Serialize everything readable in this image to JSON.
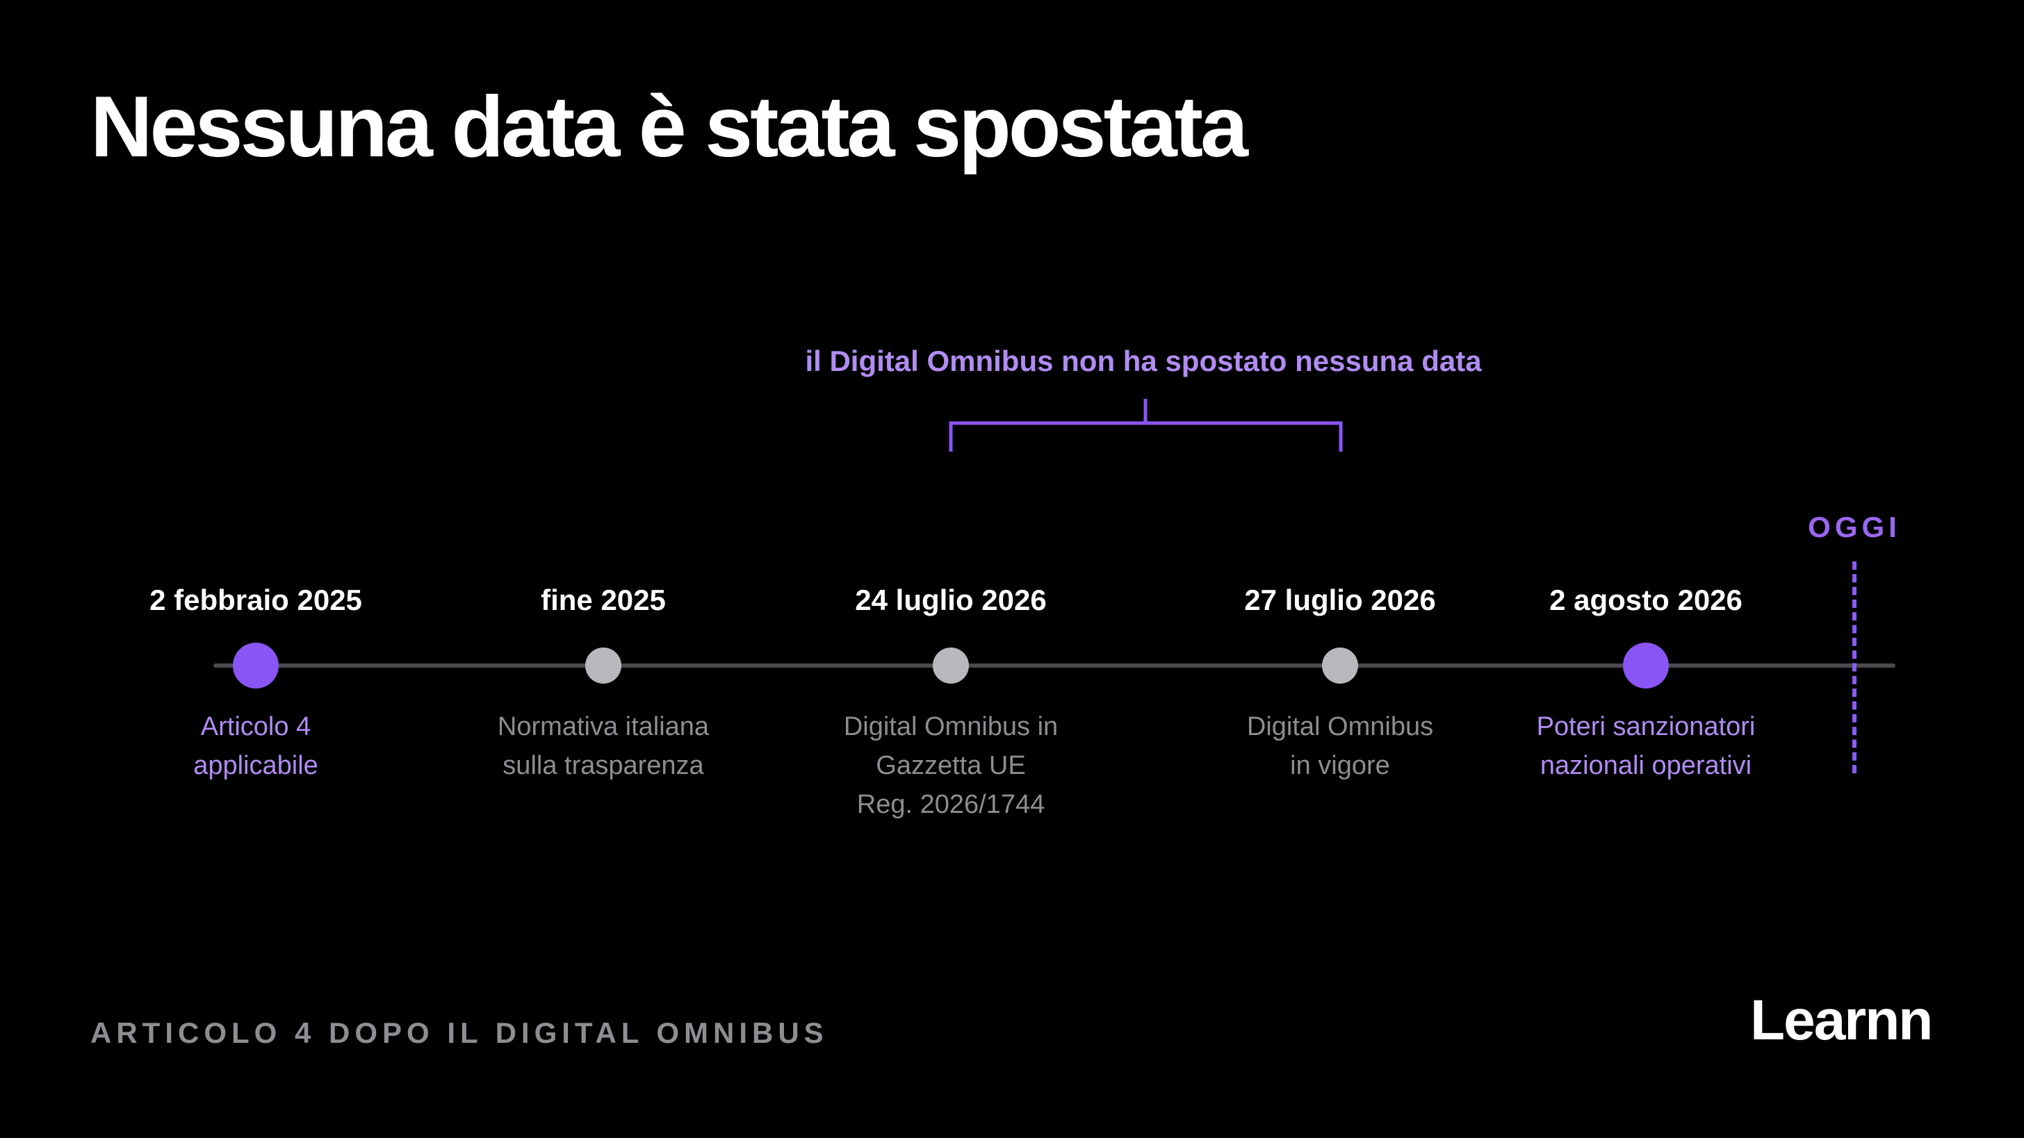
{
  "title": "Nessuna data è stata spostata",
  "bracket_label": "il Digital Omnibus non ha spostato nessuna data",
  "today_label": "OGGI",
  "milestones": [
    {
      "date": "2 febbraio 2025",
      "desc": [
        "Articolo 4",
        "applicabile"
      ],
      "style": "major"
    },
    {
      "date": "fine 2025",
      "desc": [
        "Normativa italiana",
        "sulla trasparenza"
      ],
      "style": "minor"
    },
    {
      "date": "24 luglio 2026",
      "desc": [
        "Digital Omnibus in",
        "Gazzetta UE",
        "Reg. 2026/1744"
      ],
      "style": "minor"
    },
    {
      "date": "27 luglio 2026",
      "desc": [
        "Digital Omnibus",
        "in vigore"
      ],
      "style": "minor"
    },
    {
      "date": "2 agosto 2026",
      "desc": [
        "Poteri sanzionatori",
        "nazionali operativi"
      ],
      "style": "major"
    }
  ],
  "footer_label": "ARTICOLO 4 DOPO IL DIGITAL OMNIBUS",
  "logo_text": "Learnn",
  "colors": {
    "background": "#000000",
    "accent": "#8a55f5",
    "accent_text": "#b18cf2",
    "muted_text": "#8d8d92",
    "minor_dot": "#b7b9bd",
    "axis": "#4a4a4e"
  }
}
